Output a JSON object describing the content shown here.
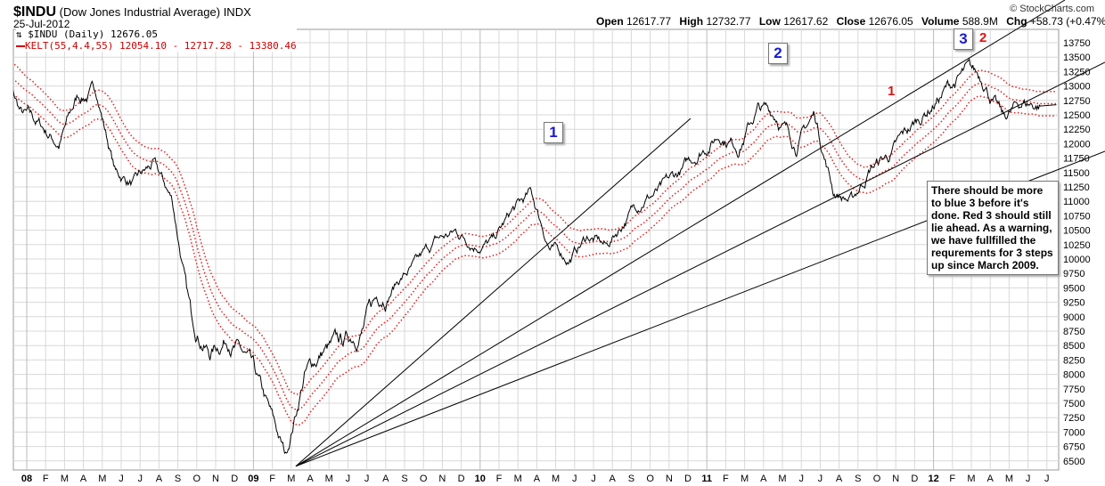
{
  "header": {
    "symbol": "$INDU",
    "name": "(Dow Jones Industrial Average)",
    "exchange": "INDX",
    "date": "25-Jul-2012",
    "brand": "© StockCharts.com",
    "open_label": "Open",
    "open": "12617.77",
    "high_label": "High",
    "high": "12732.77",
    "low_label": "Low",
    "low": "12617.62",
    "close_label": "Close",
    "close": "12676.05",
    "volume_label": "Volume",
    "volume": "588.9M",
    "chg_label": "Chg",
    "chg": "+58.73 (+0.47%)"
  },
  "legend": {
    "price": "⇅ $INDU (Daily) 12676.05",
    "kelt": "KELT(55,4.4,55) 12054.10 - 12717.28 - 13380.46"
  },
  "annotations": {
    "blue1": "1",
    "blue2": "2",
    "blue3": "3",
    "red1": "1",
    "red2": "2",
    "note": "There should be more to blue 3 before it's done.  Red 3 should still lie ahead.  As a warning, we have fullfilled the requrements for 3 steps up since March 2009."
  },
  "colors": {
    "price": "#000000",
    "kelt": "#dd2222",
    "grid": "#d8d8d8",
    "wave_label": "#1a1acc",
    "red_label": "#e01010"
  },
  "chart_data": {
    "type": "line",
    "title": "$INDU (Dow Jones Industrial Average) Daily",
    "ylim": [
      6500,
      13750
    ],
    "yticks": [
      6500,
      6750,
      7000,
      7250,
      7500,
      7750,
      8000,
      8250,
      8500,
      8750,
      9000,
      9250,
      9500,
      9750,
      10000,
      10250,
      10500,
      10750,
      11000,
      11250,
      11500,
      11750,
      12000,
      12250,
      12500,
      12750,
      13000,
      13250,
      13500,
      13750
    ],
    "xtick_labels": [
      "08",
      "F",
      "M",
      "A",
      "M",
      "J",
      "J",
      "A",
      "S",
      "O",
      "N",
      "D",
      "09",
      "F",
      "M",
      "A",
      "M",
      "J",
      "J",
      "A",
      "S",
      "O",
      "N",
      "D",
      "10",
      "F",
      "M",
      "A",
      "M",
      "J",
      "J",
      "A",
      "S",
      "O",
      "N",
      "D",
      "11",
      "F",
      "M",
      "A",
      "M",
      "J",
      "J",
      "A",
      "S",
      "O",
      "N",
      "D",
      "12",
      "F",
      "M",
      "A",
      "M",
      "J",
      "J"
    ],
    "monthly_close_approx": [
      13250,
      12500,
      12300,
      12000,
      12800,
      12900,
      11500,
      11300,
      11600,
      11000,
      9000,
      8400,
      8700,
      8200,
      7400,
      6550,
      8000,
      8400,
      8500,
      8800,
      9400,
      9700,
      9900,
      10300,
      10450,
      10300,
      10300,
      10800,
      11100,
      10200,
      10000,
      10400,
      10200,
      10700,
      11100,
      11200,
      11500,
      11900,
      12200,
      12000,
      12600,
      12500,
      12000,
      12500,
      11200,
      11000,
      11600,
      11800,
      12200,
      12600,
      12950,
      13200,
      13100,
      12400,
      12700,
      12676
    ],
    "series_start_month": "Dec-2007",
    "keltner": {
      "period": 55,
      "multiplier": 4.4,
      "last_lower": 12054.1,
      "last_middle": 12717.28,
      "last_upper": 13380.46
    },
    "trendlines_from": {
      "date": "Mar-2009",
      "value": 6500
    }
  }
}
